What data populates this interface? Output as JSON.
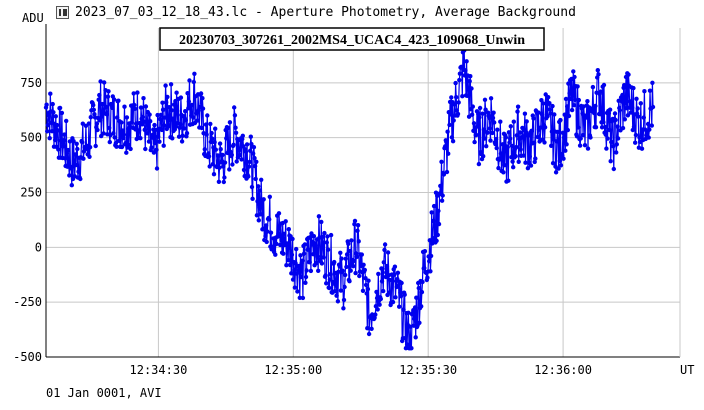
{
  "window": {
    "title": "2023_07_03_12_18_43.lc - Aperture Photometry, Average Background",
    "icon": "lightcurve-app-icon"
  },
  "footer": {
    "text": "01 Jan 0001, AVI"
  },
  "colors": {
    "series": "#0000ee",
    "grid": "#c8c8c8",
    "axis": "#000000",
    "legend_border": "#000000"
  },
  "chart_data": {
    "type": "scatter",
    "title": "",
    "legend": {
      "entries": [
        "20230703_307261_2002MS4_UCAC4_423_109068_Unwin"
      ],
      "placement": "top-center"
    },
    "xlabel": "UT",
    "ylabel": "ADU",
    "xlim": [
      "12:34:05",
      "12:36:26"
    ],
    "ylim": [
      -500,
      1000
    ],
    "x_tick_labels": [
      "12:34:30",
      "12:35:00",
      "12:35:30",
      "12:36:00"
    ],
    "y_tick_labels": [
      "750",
      "500",
      "250",
      "0",
      "-250",
      "-500"
    ],
    "y_ticks": [
      750,
      500,
      250,
      0,
      -250,
      -500
    ],
    "x_tick_seconds": [
      30,
      60,
      90,
      120
    ],
    "grid": true,
    "connected": true,
    "series": [
      {
        "name": "20230703_307261_2002MS4_UCAC4_423_109068_Unwin",
        "marker": "dot",
        "x_seconds_after": "12:34:00",
        "x": [
          5,
          8,
          11,
          14,
          17,
          20,
          23,
          26,
          29,
          32,
          35,
          38,
          41,
          44,
          47,
          50,
          53,
          56,
          59,
          62,
          65,
          68,
          71,
          74,
          77,
          80,
          83,
          86,
          89,
          92,
          95,
          98,
          101,
          104,
          107,
          110,
          113,
          116,
          119,
          122,
          125,
          128,
          131,
          134,
          137,
          140
        ],
        "y": [
          640,
          520,
          380,
          470,
          640,
          590,
          560,
          620,
          420,
          640,
          580,
          700,
          470,
          380,
          520,
          430,
          180,
          70,
          10,
          -130,
          40,
          -60,
          -160,
          20,
          -310,
          -90,
          -200,
          -440,
          -110,
          150,
          560,
          820,
          490,
          610,
          380,
          520,
          470,
          610,
          440,
          690,
          520,
          720,
          460,
          700,
          560,
          640
        ],
        "notes_visible_range": [
          -460,
          960
        ]
      }
    ]
  }
}
